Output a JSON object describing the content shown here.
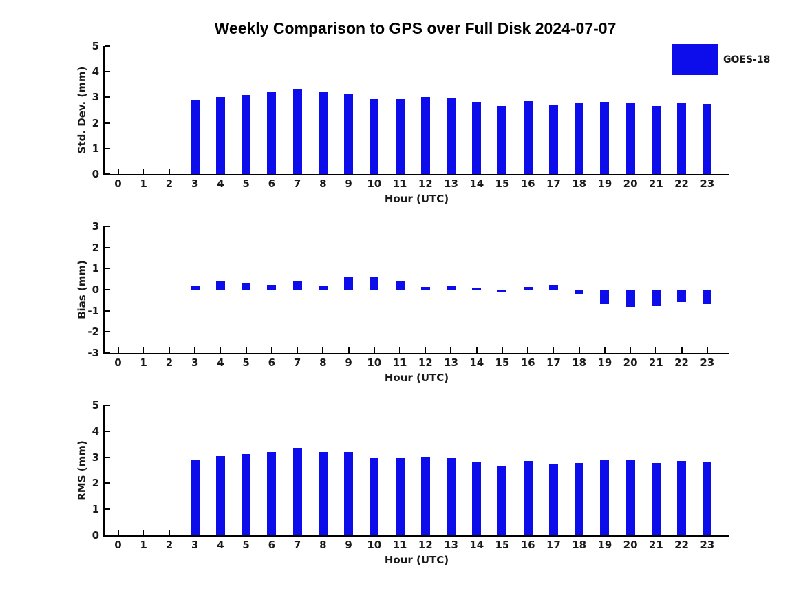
{
  "title": "Weekly Comparison to GPS over Full Disk 2024-07-07",
  "legend": {
    "label": "GOES-18",
    "color": "#0d0dec"
  },
  "colors": {
    "bar": "#0d0dec",
    "axis": "#000000",
    "text": "#1a1a1a"
  },
  "chart_data": [
    {
      "type": "bar",
      "title": "Weekly Comparison to GPS over Full Disk 2024-07-07",
      "ylabel": "Std. Dev. (mm)",
      "xlabel": "Hour (UTC)",
      "ylim": [
        0,
        5
      ],
      "yticks": [
        0,
        1,
        2,
        3,
        4,
        5
      ],
      "grid": false,
      "legend_position": "upper right",
      "categories": [
        0,
        1,
        2,
        3,
        4,
        5,
        6,
        7,
        8,
        9,
        10,
        11,
        12,
        13,
        14,
        15,
        16,
        17,
        18,
        19,
        20,
        21,
        22,
        23
      ],
      "series": [
        {
          "name": "GOES-18",
          "values": [
            0,
            0,
            0,
            2.89,
            3.01,
            3.09,
            3.19,
            3.33,
            3.19,
            3.14,
            2.93,
            2.93,
            3.01,
            2.96,
            2.83,
            2.66,
            2.85,
            2.72,
            2.77,
            2.82,
            2.77,
            2.66,
            2.8,
            2.74
          ]
        }
      ]
    },
    {
      "type": "bar",
      "title": "",
      "ylabel": "Bias (mm)",
      "xlabel": "Hour (UTC)",
      "ylim": [
        -3,
        3
      ],
      "yticks": [
        -3,
        -2,
        -1,
        0,
        1,
        2,
        3
      ],
      "zero_line": true,
      "grid": false,
      "categories": [
        0,
        1,
        2,
        3,
        4,
        5,
        6,
        7,
        8,
        9,
        10,
        11,
        12,
        13,
        14,
        15,
        16,
        17,
        18,
        19,
        20,
        21,
        22,
        23
      ],
      "series": [
        {
          "name": "GOES-18",
          "values": [
            0,
            0,
            0,
            0.16,
            0.41,
            0.34,
            0.24,
            0.38,
            0.21,
            0.61,
            0.58,
            0.39,
            0.13,
            0.17,
            0.05,
            -0.13,
            0.14,
            0.23,
            -0.22,
            -0.68,
            -0.81,
            -0.79,
            -0.6,
            -0.67
          ]
        }
      ]
    },
    {
      "type": "bar",
      "title": "",
      "ylabel": "RMS (mm)",
      "xlabel": "Hour (UTC)",
      "ylim": [
        0,
        5
      ],
      "yticks": [
        0,
        1,
        2,
        3,
        4,
        5
      ],
      "grid": false,
      "categories": [
        0,
        1,
        2,
        3,
        4,
        5,
        6,
        7,
        8,
        9,
        10,
        11,
        12,
        13,
        14,
        15,
        16,
        17,
        18,
        19,
        20,
        21,
        22,
        23
      ],
      "series": [
        {
          "name": "GOES-18",
          "values": [
            0,
            0,
            0,
            2.89,
            3.04,
            3.11,
            3.2,
            3.35,
            3.2,
            3.2,
            2.99,
            2.96,
            3.01,
            2.97,
            2.83,
            2.66,
            2.86,
            2.73,
            2.78,
            2.9,
            2.88,
            2.77,
            2.86,
            2.82
          ]
        }
      ]
    }
  ]
}
